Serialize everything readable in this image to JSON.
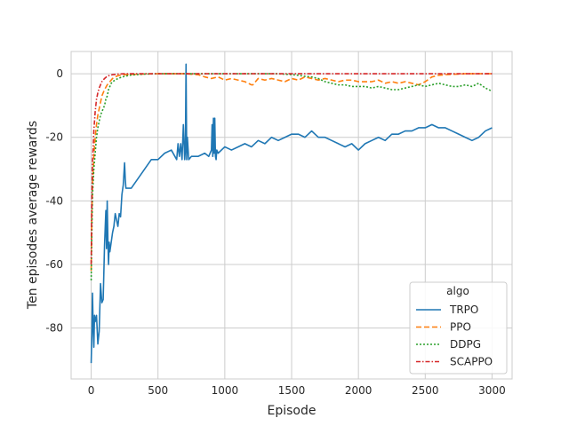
{
  "chart_data": {
    "type": "line",
    "title": "",
    "xlabel": "Episode",
    "ylabel": "Ten episodes average rewards",
    "xlim": [
      -150,
      3150
    ],
    "ylim": [
      -96,
      7
    ],
    "xticks": [
      0,
      500,
      1000,
      1500,
      2000,
      2500,
      3000
    ],
    "yticks": [
      0,
      -20,
      -40,
      -60,
      -80
    ],
    "grid": true,
    "legend": {
      "title": "algo",
      "placement": "lower-right"
    },
    "series": [
      {
        "name": "TRPO",
        "color": "#1f77b4",
        "dash": "solid",
        "x": [
          0,
          5,
          10,
          15,
          20,
          25,
          30,
          40,
          50,
          60,
          70,
          80,
          90,
          100,
          110,
          115,
          120,
          125,
          130,
          135,
          140,
          150,
          160,
          170,
          180,
          190,
          200,
          210,
          220,
          230,
          240,
          250,
          255,
          260,
          270,
          300,
          350,
          400,
          450,
          500,
          550,
          600,
          640,
          650,
          660,
          670,
          680,
          690,
          700,
          705,
          710,
          715,
          720,
          730,
          750,
          800,
          850,
          880,
          900,
          905,
          910,
          915,
          920,
          925,
          930,
          935,
          940,
          950,
          1000,
          1050,
          1100,
          1150,
          1200,
          1250,
          1300,
          1350,
          1400,
          1450,
          1500,
          1550,
          1600,
          1650,
          1700,
          1750,
          1800,
          1850,
          1900,
          1950,
          2000,
          2050,
          2100,
          2150,
          2200,
          2250,
          2300,
          2350,
          2400,
          2450,
          2500,
          2550,
          2600,
          2650,
          2700,
          2750,
          2800,
          2850,
          2900,
          2950,
          3000
        ],
        "y": [
          -91,
          -82,
          -69,
          -80,
          -86,
          -76,
          -78,
          -76,
          -85,
          -81,
          -66,
          -72,
          -71,
          -54,
          -43,
          -55,
          -40,
          -52,
          -60,
          -53,
          -56,
          -53,
          -50,
          -48,
          -44,
          -46,
          -48,
          -44,
          -45,
          -38,
          -35,
          -28,
          -33,
          -36,
          -36,
          -36,
          -33,
          -30,
          -27,
          -27,
          -25,
          -24,
          -27,
          -22,
          -26,
          -22,
          -27,
          -16,
          -27,
          -24,
          3,
          -27,
          -20,
          -27,
          -26,
          -26,
          -25,
          -26,
          -24,
          -16,
          -26,
          -14,
          -25,
          -14,
          -26,
          -27,
          -24,
          -25,
          -23,
          -24,
          -23,
          -22,
          -23,
          -21,
          -22,
          -20,
          -21,
          -20,
          -19,
          -19,
          -20,
          -18,
          -20,
          -20,
          -21,
          -22,
          -23,
          -22,
          -24,
          -22,
          -21,
          -20,
          -21,
          -19,
          -19,
          -18,
          -18,
          -17,
          -17,
          -16,
          -17,
          -17,
          -18,
          -19,
          -20,
          -21,
          -20,
          -18,
          -17
        ]
      },
      {
        "name": "PPO",
        "color": "#ff7f0e",
        "dash": "6,3",
        "x": [
          0,
          5,
          10,
          20,
          30,
          40,
          50,
          60,
          70,
          80,
          90,
          100,
          120,
          140,
          160,
          180,
          200,
          250,
          300,
          400,
          500,
          600,
          700,
          800,
          850,
          900,
          950,
          1000,
          1050,
          1100,
          1150,
          1200,
          1210,
          1250,
          1300,
          1350,
          1400,
          1450,
          1500,
          1550,
          1600,
          1650,
          1700,
          1750,
          1800,
          1850,
          1900,
          1950,
          2000,
          2050,
          2100,
          2150,
          2200,
          2250,
          2300,
          2350,
          2400,
          2450,
          2500,
          2550,
          2600,
          2650,
          2700,
          2750,
          2800,
          2850,
          2900,
          2950,
          3000
        ],
        "y": [
          -62,
          -45,
          -35,
          -26,
          -20,
          -16,
          -13,
          -11,
          -9,
          -7,
          -6,
          -5,
          -3.5,
          -2.5,
          -1.5,
          -1,
          -0.6,
          -0.3,
          -0.2,
          -0.1,
          0,
          0,
          0,
          -0.3,
          -1,
          -1.5,
          -1,
          -2,
          -1.5,
          -2,
          -2.5,
          -3.5,
          -3.5,
          -1.5,
          -2,
          -1.5,
          -2,
          -2.5,
          -1.5,
          -2,
          -1,
          -1.5,
          -2,
          -1.5,
          -2,
          -2.5,
          -2,
          -2,
          -2.5,
          -2.5,
          -2.5,
          -2,
          -3,
          -2.5,
          -3,
          -2.5,
          -3,
          -3.5,
          -2.5,
          -1,
          -0.5,
          -0.3,
          -0.2,
          -0.1,
          0,
          0,
          0,
          0,
          0
        ]
      },
      {
        "name": "DDPG",
        "color": "#2ca02c",
        "dash": "2,2",
        "x": [
          0,
          5,
          10,
          20,
          30,
          40,
          50,
          60,
          70,
          80,
          90,
          100,
          110,
          120,
          130,
          140,
          150,
          160,
          180,
          200,
          220,
          250,
          300,
          400,
          500,
          600,
          700,
          800,
          900,
          1000,
          1100,
          1200,
          1300,
          1400,
          1500,
          1550,
          1600,
          1650,
          1700,
          1750,
          1800,
          1850,
          1900,
          1950,
          2000,
          2050,
          2100,
          2150,
          2200,
          2250,
          2300,
          2350,
          2400,
          2450,
          2500,
          2550,
          2600,
          2650,
          2700,
          2750,
          2800,
          2850,
          2900,
          2950,
          3000
        ],
        "y": [
          -65,
          -50,
          -38,
          -30,
          -25,
          -20,
          -17,
          -15,
          -13,
          -12,
          -11,
          -10,
          -8,
          -7,
          -5,
          -4,
          -3,
          -2.5,
          -2,
          -1.5,
          -1.2,
          -0.8,
          -0.4,
          -0.1,
          0,
          0,
          0,
          0,
          0,
          0,
          0,
          0,
          0,
          0,
          -0.3,
          -0.5,
          -0.8,
          -1,
          -1.5,
          -2.5,
          -3,
          -3.5,
          -3.5,
          -4,
          -4,
          -4,
          -4.5,
          -4,
          -4.5,
          -5,
          -5,
          -4.5,
          -4,
          -3.5,
          -4,
          -3.5,
          -3,
          -3.5,
          -4,
          -4,
          -3.5,
          -4,
          -3,
          -4.5,
          -5.5
        ]
      },
      {
        "name": "SCAPPO",
        "color": "#d62728",
        "dash": "5,2,1.5,2",
        "x": [
          0,
          5,
          10,
          20,
          30,
          40,
          50,
          60,
          70,
          80,
          90,
          100,
          120,
          140,
          160,
          180,
          200,
          250,
          300,
          500,
          1000,
          1500,
          2000,
          2500,
          3000
        ],
        "y": [
          -60,
          -40,
          -28,
          -18,
          -12,
          -8,
          -6,
          -4.5,
          -3.5,
          -2.5,
          -2,
          -1.5,
          -0.8,
          -0.5,
          -0.3,
          -0.2,
          -0.1,
          0,
          0,
          0,
          0,
          0,
          0,
          0,
          0
        ]
      }
    ]
  }
}
